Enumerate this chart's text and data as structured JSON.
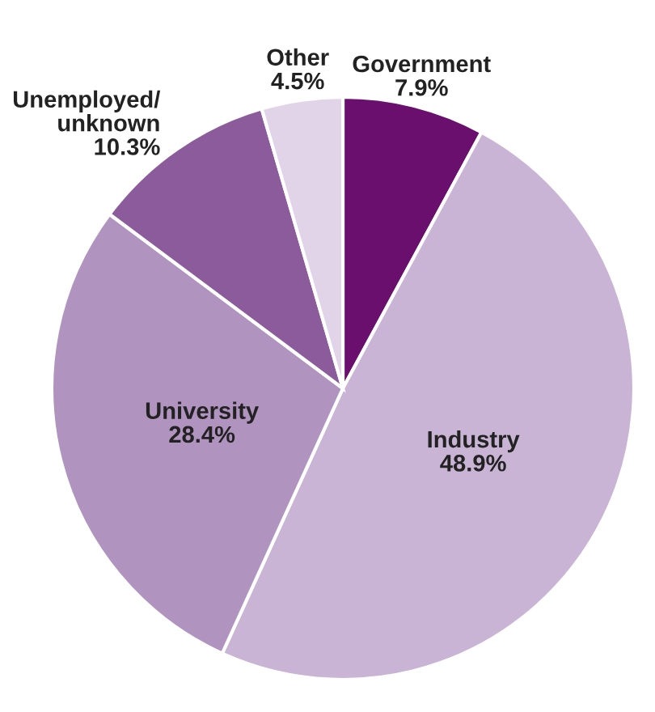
{
  "chart_data": {
    "type": "pie",
    "categories": [
      "Government",
      "Industry",
      "University",
      "Unemployed/\nunknown",
      "Other"
    ],
    "values": [
      7.9,
      48.9,
      28.4,
      10.3,
      4.5
    ],
    "value_labels": [
      "7.9%",
      "48.9%",
      "28.4%",
      "10.3%",
      "4.5%"
    ],
    "colors": [
      "#6b0f6e",
      "#c9b4d6",
      "#b193c0",
      "#8c5b9c",
      "#e2d4e8"
    ]
  }
}
